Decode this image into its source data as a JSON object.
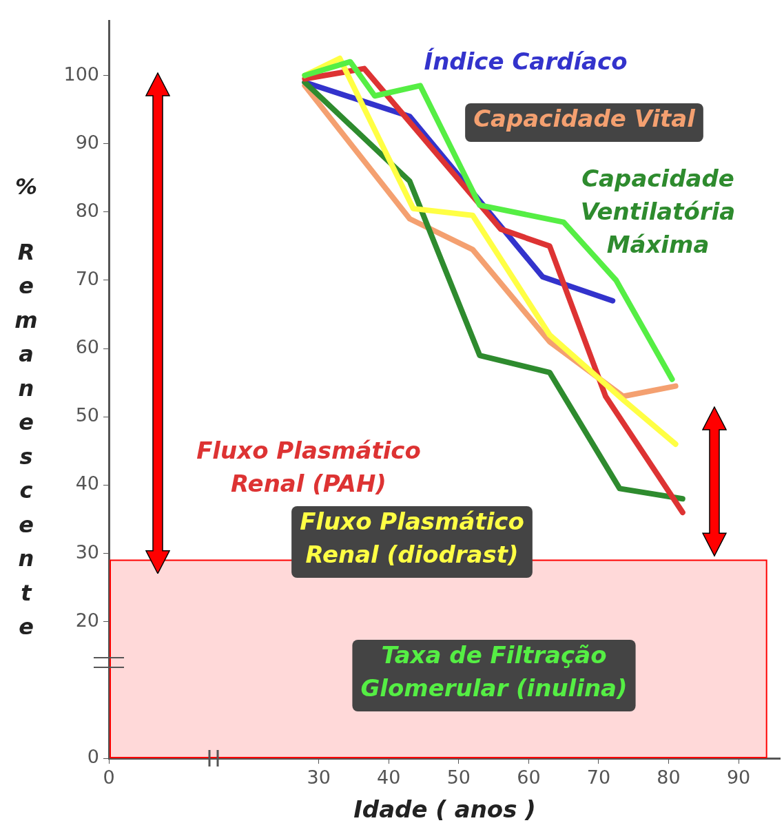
{
  "chart_data": {
    "type": "line",
    "xlabel": "Idade ( anos )",
    "ylabel": "% Remanescente",
    "xlim": [
      0,
      96
    ],
    "xticks": [
      0,
      30,
      40,
      50,
      60,
      70,
      80,
      90
    ],
    "ylim": [
      0,
      108
    ],
    "yticks": [
      0,
      20,
      30,
      40,
      50,
      60,
      70,
      80,
      90,
      100
    ],
    "grid": false,
    "legend": false,
    "marker": "none",
    "line_style": "solid",
    "bands": [
      {
        "axis": "y",
        "from": 0,
        "to": 29,
        "color": "#ff0000"
      }
    ],
    "series": [
      {
        "name": "Índice Cardíaco",
        "color": "#3333cc",
        "x": [
          28,
          43,
          62,
          72
        ],
        "values": [
          99,
          94,
          70.5,
          67
        ]
      },
      {
        "name": "Capacidade Vital",
        "color": "#f4a070",
        "x": [
          28,
          43,
          52,
          63,
          73.5,
          81
        ],
        "values": [
          98.5,
          79,
          74.5,
          61,
          53,
          54.5
        ]
      },
      {
        "name": "Capacidade Ventilatória Máxima",
        "color": "#2e8b2e",
        "x": [
          28,
          43,
          53,
          63,
          73,
          82
        ],
        "values": [
          99,
          84.5,
          59,
          56.5,
          39.5,
          38
        ]
      },
      {
        "name": "Fluxo Plasmático Renal (PAH)",
        "color": "#dd3333",
        "x": [
          28,
          36.5,
          56,
          63,
          71,
          82
        ],
        "values": [
          99.5,
          101,
          77.5,
          75,
          53,
          36
        ]
      },
      {
        "name": "Fluxo Plasmático Renal (diodrast)",
        "color": "#ffff44",
        "x": [
          28,
          33,
          43.5,
          52,
          63,
          73.5,
          81
        ],
        "values": [
          100,
          102.5,
          80.5,
          79.5,
          62,
          52.5,
          46
        ]
      },
      {
        "name": "Taxa de Filtração Glomerular (inulina)",
        "color": "#55ee44",
        "x": [
          28,
          34.5,
          38,
          44.5,
          53,
          65,
          72.5,
          80.5
        ],
        "values": [
          100,
          102,
          97,
          98.5,
          81,
          78.5,
          70,
          55.5
        ]
      }
    ]
  }
}
